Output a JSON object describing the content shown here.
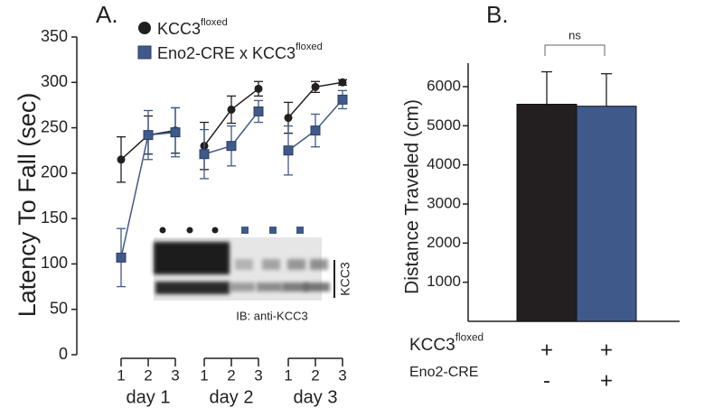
{
  "chart_data": [
    {
      "type": "line",
      "panel_label": "A.",
      "ylabel": "Latency To Fall (sec)",
      "ylim": [
        0,
        350
      ],
      "yticks": [
        0,
        50,
        100,
        150,
        200,
        250,
        300,
        350
      ],
      "groups": [
        "day 1",
        "day 2",
        "day 3"
      ],
      "categories": [
        [
          "1",
          "2",
          "3"
        ],
        [
          "1",
          "2",
          "3"
        ],
        [
          "1",
          "2",
          "3"
        ]
      ],
      "series": [
        {
          "name": "KCC3",
          "name_superscript": "floxed",
          "color": "#231f20",
          "marker": "circle",
          "values": [
            [
              215,
              242,
              247
            ],
            [
              230,
              270,
              293
            ],
            [
              261,
              295,
              300
            ]
          ],
          "errors": [
            [
              25,
              21,
              25
            ],
            [
              26,
              15,
              8
            ],
            [
              17,
              6,
              3
            ]
          ]
        },
        {
          "name": "Eno2-CRE x KCC3",
          "name_superscript": "floxed",
          "color": "#3f5a8a",
          "marker": "square",
          "values": [
            [
              107,
              242,
              245
            ],
            [
              221,
              230,
              268
            ],
            [
              225,
              247,
              281
            ]
          ],
          "errors": [
            [
              32,
              27,
              27
            ],
            [
              27,
              22,
              12
            ],
            [
              27,
              18,
              10
            ]
          ]
        }
      ],
      "inset": {
        "band_label": "KCC3",
        "caption": "IB: anti-KCC3"
      }
    },
    {
      "type": "bar",
      "panel_label": "B.",
      "ylabel": "Distance Traveled (cm)",
      "ylim": [
        0,
        6600
      ],
      "yticks": [
        1000,
        2000,
        3000,
        4000,
        5000,
        6000
      ],
      "values": [
        5550,
        5500
      ],
      "errors": [
        830,
        830
      ],
      "colors": [
        "#231f20",
        "#3f5a8a"
      ],
      "annotation": "ns",
      "x_table": [
        {
          "label": "KCC3",
          "superscript": "floxed",
          "cells": [
            "+",
            "+"
          ]
        },
        {
          "label": "Eno2-CRE",
          "cells": [
            "-",
            "+"
          ]
        }
      ]
    }
  ]
}
